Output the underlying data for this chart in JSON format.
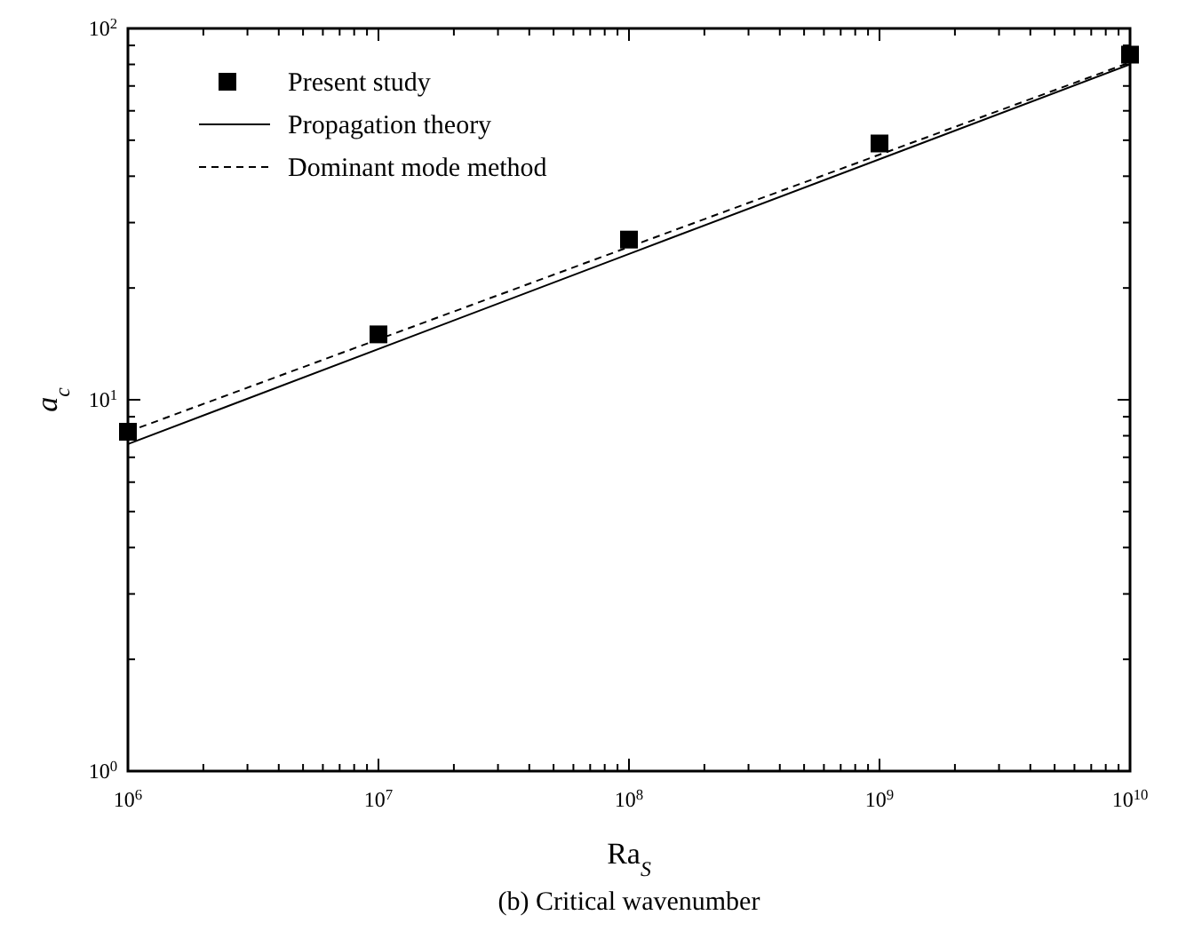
{
  "chart_data": {
    "type": "line",
    "xlabel": "Ra$_{S}$",
    "ylabel": "a$_{c}$",
    "annotations": [
      "(b) Critical wavenumber"
    ],
    "log": "xy",
    "grid": false,
    "legend": "top left",
    "xlim": [
      1000000,
      10000000000
    ],
    "ylim": [
      1,
      100
    ],
    "xticks": [
      {
        "value": 1000000,
        "label": "10$^{6}$"
      },
      {
        "value": 2000000,
        "label": null
      },
      {
        "value": 3000000,
        "label": null
      },
      {
        "value": 4000000,
        "label": null
      },
      {
        "value": 5000000,
        "label": null
      },
      {
        "value": 6000000,
        "label": null
      },
      {
        "value": 7000000,
        "label": null
      },
      {
        "value": 8000000,
        "label": null
      },
      {
        "value": 9000000,
        "label": null
      },
      {
        "value": 10000000,
        "label": "10$^{7}$"
      },
      {
        "value": 20000000,
        "label": null
      },
      {
        "value": 30000000,
        "label": null
      },
      {
        "value": 40000000,
        "label": null
      },
      {
        "value": 50000000,
        "label": null
      },
      {
        "value": 60000000,
        "label": null
      },
      {
        "value": 70000000,
        "label": null
      },
      {
        "value": 80000000,
        "label": null
      },
      {
        "value": 90000000,
        "label": null
      },
      {
        "value": 100000000,
        "label": "10$^{8}$"
      },
      {
        "value": 200000000,
        "label": null
      },
      {
        "value": 300000000,
        "label": null
      },
      {
        "value": 400000000,
        "label": null
      },
      {
        "value": 500000000,
        "label": null
      },
      {
        "value": 600000000,
        "label": null
      },
      {
        "value": 700000000,
        "label": null
      },
      {
        "value": 800000000,
        "label": null
      },
      {
        "value": 900000000,
        "label": null
      },
      {
        "value": 1000000000,
        "label": "10$^{9}$"
      },
      {
        "value": 2000000000,
        "label": null
      },
      {
        "value": 3000000000,
        "label": null
      },
      {
        "value": 4000000000,
        "label": null
      },
      {
        "value": 5000000000,
        "label": null
      },
      {
        "value": 6000000000,
        "label": null
      },
      {
        "value": 7000000000,
        "label": null
      },
      {
        "value": 8000000000,
        "label": null
      },
      {
        "value": 9000000000,
        "label": null
      },
      {
        "value": 10000000000,
        "label": "10$^{10}$"
      }
    ],
    "yticks": [
      {
        "value": 1,
        "label": "10$^{0}$"
      },
      {
        "value": 2,
        "label": null
      },
      {
        "value": 3,
        "label": null
      },
      {
        "value": 4,
        "label": null
      },
      {
        "value": 5,
        "label": null
      },
      {
        "value": 6,
        "label": null
      },
      {
        "value": 7,
        "label": null
      },
      {
        "value": 8,
        "label": null
      },
      {
        "value": 9,
        "label": null
      },
      {
        "value": 10,
        "label": "10$^{1}$"
      },
      {
        "value": 20,
        "label": null
      },
      {
        "value": 30,
        "label": null
      },
      {
        "value": 40,
        "label": null
      },
      {
        "value": 50,
        "label": null
      },
      {
        "value": 60,
        "label": null
      },
      {
        "value": 70,
        "label": null
      },
      {
        "value": 80,
        "label": null
      },
      {
        "value": 90,
        "label": null
      },
      {
        "value": 100,
        "label": "10$^{2}$"
      }
    ],
    "series": [
      {
        "name": "Present study",
        "type": "scatter",
        "marker": "square",
        "color": "#000000",
        "x": [
          1000000,
          10000000,
          100000000,
          1000000000,
          10000000000
        ],
        "values": [
          8.2,
          15,
          27,
          49,
          85
        ]
      },
      {
        "name": "Propagation theory",
        "line_style": "solid",
        "color": "#000000",
        "x": [
          1000000,
          100000000,
          10000000000
        ],
        "values": [
          7.6,
          24.7,
          80
        ]
      },
      {
        "name": "Dominant mode method",
        "line_style": "dashed",
        "color": "#000000",
        "x": [
          1000000,
          100000000,
          10000000000
        ],
        "values": [
          8.2,
          25.8,
          81
        ]
      }
    ]
  }
}
